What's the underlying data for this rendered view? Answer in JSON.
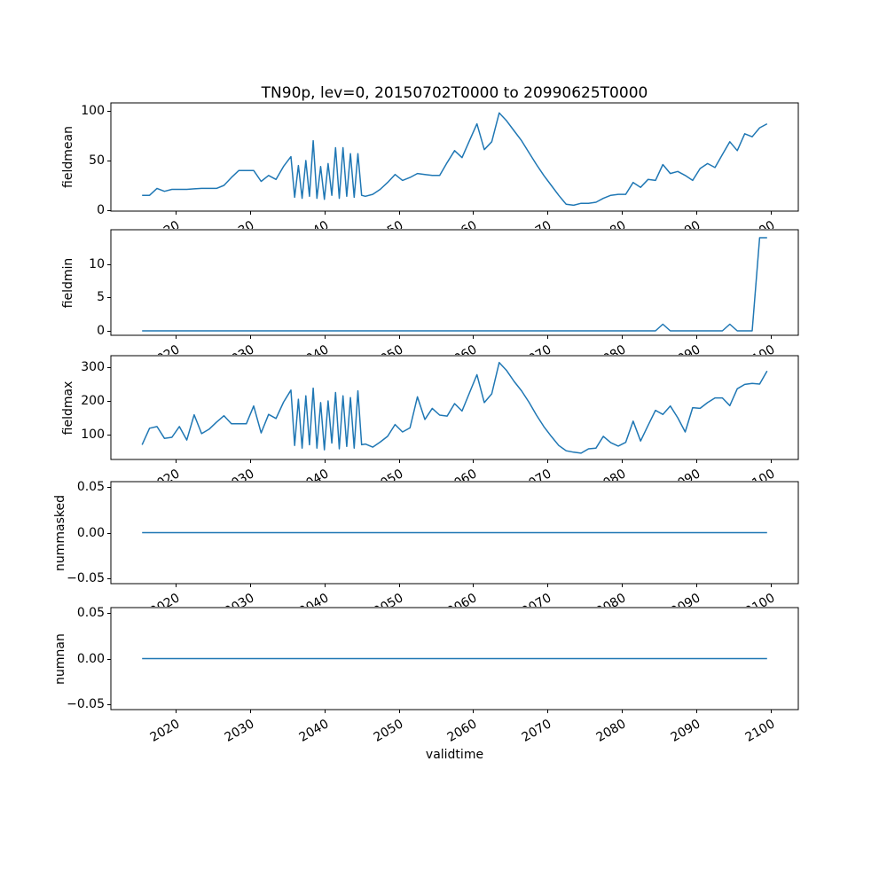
{
  "chart_data": {
    "type": "line",
    "title": "TN90p, lev=0, 20150702T0000 to 20990625T0000",
    "xlabel": "validtime",
    "grid": false,
    "legend": "none",
    "line_color": "#1f77b4",
    "spine_color": "#000000",
    "xlim": [
      2011.3,
      2103.7
    ],
    "xticks": [
      2020,
      2030,
      2040,
      2050,
      2060,
      2070,
      2080,
      2090,
      2100
    ],
    "xtick_labels": [
      "2020",
      "2030",
      "2040",
      "2050",
      "2060",
      "2070",
      "2080",
      "2090",
      "2100"
    ],
    "xtick_rotation_deg": 30,
    "subplots": [
      {
        "ylabel": "fieldmean",
        "ylim": [
          -0.9,
          108.1
        ],
        "yticks": [
          0,
          50,
          100
        ],
        "ytick_labels": [
          "0",
          "50",
          "100"
        ],
        "x": [
          2015.5,
          2016.5,
          2017.5,
          2018.5,
          2019.5,
          2020.5,
          2021.5,
          2022.5,
          2023.5,
          2024.5,
          2025.5,
          2026.5,
          2027.5,
          2028.5,
          2029.5,
          2030.5,
          2031.5,
          2032.5,
          2033.5,
          2034.5,
          2035.5,
          2036,
          2036.5,
          2037,
          2037.5,
          2038,
          2038.5,
          2039,
          2039.5,
          2040,
          2040.5,
          2041,
          2041.5,
          2042,
          2042.5,
          2043,
          2043.5,
          2044,
          2044.5,
          2045,
          2045.5,
          2046.5,
          2047.5,
          2048.5,
          2049.5,
          2050.5,
          2051.5,
          2052.5,
          2053.5,
          2054.5,
          2055.5,
          2056.5,
          2057.5,
          2058.5,
          2059.5,
          2060.5,
          2061.5,
          2062.5,
          2063.5,
          2064.5,
          2065.5,
          2066.5,
          2067.5,
          2068.5,
          2069.5,
          2070.5,
          2071.5,
          2072.5,
          2073.5,
          2074.5,
          2075.5,
          2076.5,
          2077.5,
          2078.5,
          2079.5,
          2080.5,
          2081.5,
          2082.5,
          2083.5,
          2084.5,
          2085.5,
          2086.5,
          2087.5,
          2088.5,
          2089.5,
          2090.5,
          2091.5,
          2092.5,
          2093.5,
          2094.5,
          2095.5,
          2096.5,
          2097.5,
          2098.5,
          2099.5
        ],
        "y": [
          15,
          15,
          22,
          19,
          21,
          21,
          21,
          21.5,
          22,
          22,
          22,
          25,
          33,
          40,
          40,
          40,
          29,
          35,
          31,
          44,
          54,
          13,
          45,
          12,
          50,
          14,
          70,
          12,
          44,
          11,
          47,
          15,
          63,
          12,
          63,
          14,
          57,
          13,
          57,
          15,
          14,
          16,
          21,
          28,
          36,
          30,
          33,
          37,
          36,
          35,
          35,
          48,
          60,
          53,
          70,
          87,
          61,
          69,
          98,
          90,
          80,
          70,
          58,
          46,
          35,
          25,
          15,
          6,
          5,
          7,
          7,
          8,
          12,
          15,
          16,
          16,
          28,
          23,
          31,
          30,
          46,
          37,
          39,
          35,
          30,
          42,
          47,
          43,
          56,
          69,
          60,
          77,
          74,
          83,
          87
        ]
      },
      {
        "ylabel": "fieldmin",
        "ylim": [
          -0.67,
          15.2
        ],
        "yticks": [
          0,
          5,
          10
        ],
        "ytick_labels": [
          "0",
          "5",
          "10"
        ],
        "x": [
          2015.5,
          2016.5,
          2017.5,
          2018.5,
          2019.5,
          2020.5,
          2021.5,
          2022.5,
          2023.5,
          2024.5,
          2025.5,
          2026.5,
          2027.5,
          2028.5,
          2029.5,
          2030.5,
          2031.5,
          2032.5,
          2033.5,
          2034.5,
          2035.5,
          2036.5,
          2037.5,
          2038.5,
          2039.5,
          2040.5,
          2041.5,
          2042.5,
          2043.5,
          2044.5,
          2045.5,
          2046.5,
          2047.5,
          2048.5,
          2049.5,
          2050.5,
          2051.5,
          2052.5,
          2053.5,
          2054.5,
          2055.5,
          2056.5,
          2057.5,
          2058.5,
          2059.5,
          2060.5,
          2061.5,
          2062.5,
          2063.5,
          2064.5,
          2065.5,
          2066.5,
          2067.5,
          2068.5,
          2069.5,
          2070.5,
          2071.5,
          2072.5,
          2073.5,
          2074.5,
          2075.5,
          2076.5,
          2077.5,
          2078.5,
          2079.5,
          2080.5,
          2081.5,
          2082.5,
          2083.5,
          2084.5,
          2085.5,
          2086.5,
          2087.5,
          2088.5,
          2089.5,
          2090.5,
          2091.5,
          2092.5,
          2093.5,
          2094.5,
          2095.5,
          2096.5,
          2097.5,
          2098.5,
          2099.5
        ],
        "y": [
          0,
          0,
          0,
          0,
          0,
          0,
          0,
          0,
          0,
          0,
          0,
          0,
          0,
          0,
          0,
          0,
          0,
          0,
          0,
          0,
          0,
          0,
          0,
          0,
          0,
          0,
          0,
          0,
          0,
          0,
          0,
          0,
          0,
          0,
          0,
          0,
          0,
          0,
          0,
          0,
          0,
          0,
          0,
          0,
          0,
          0,
          0,
          0,
          0,
          0,
          0,
          0,
          0,
          0,
          0,
          0,
          0,
          0,
          0,
          0,
          0,
          0,
          0,
          0,
          0,
          0,
          0,
          0,
          0,
          0,
          1,
          0,
          0,
          0,
          0,
          0,
          0,
          0,
          0,
          1,
          0,
          0,
          0,
          14,
          14
        ]
      },
      {
        "ylabel": "fieldmax",
        "ylim": [
          26.3,
          334.2
        ],
        "yticks": [
          100,
          200,
          300
        ],
        "ytick_labels": [
          "100",
          "200",
          "300"
        ],
        "x": [
          2015.5,
          2016.5,
          2017.5,
          2018.5,
          2019.5,
          2020.5,
          2021.5,
          2022.5,
          2023.5,
          2024.5,
          2025.5,
          2026.5,
          2027.5,
          2028.5,
          2029.5,
          2030.5,
          2031.5,
          2032.5,
          2033.5,
          2034.5,
          2035.5,
          2036,
          2036.5,
          2037,
          2037.5,
          2038,
          2038.5,
          2039,
          2039.5,
          2040,
          2040.5,
          2041,
          2041.5,
          2042,
          2042.5,
          2043,
          2043.5,
          2044,
          2044.5,
          2045,
          2045.5,
          2046.5,
          2047.5,
          2048.5,
          2049.5,
          2050.5,
          2051.5,
          2052.5,
          2053.5,
          2054.5,
          2055.5,
          2056.5,
          2057.5,
          2058.5,
          2059.5,
          2060.5,
          2061.5,
          2062.5,
          2063.5,
          2064.5,
          2065.5,
          2066.5,
          2067.5,
          2068.5,
          2069.5,
          2070.5,
          2071.5,
          2072.5,
          2073.5,
          2074.5,
          2075.5,
          2076.5,
          2077.5,
          2078.5,
          2079.5,
          2080.5,
          2081.5,
          2082.5,
          2083.5,
          2084.5,
          2085.5,
          2086.5,
          2087.5,
          2088.5,
          2089.5,
          2090.5,
          2091.5,
          2092.5,
          2093.5,
          2094.5,
          2095.5,
          2096.5,
          2097.5,
          2098.5,
          2099.5
        ],
        "y": [
          70,
          119,
          124,
          89,
          92,
          124,
          84,
          159,
          103,
          116,
          137,
          156,
          132,
          132,
          132,
          185,
          105,
          160,
          148,
          196,
          232,
          68,
          205,
          60,
          215,
          70,
          238,
          60,
          195,
          55,
          200,
          75,
          225,
          58,
          215,
          65,
          210,
          60,
          230,
          70,
          72,
          63,
          78,
          95,
          130,
          108,
          120,
          212,
          145,
          178,
          158,
          155,
          192,
          170,
          224,
          278,
          195,
          221,
          314,
          290,
          258,
          230,
          196,
          158,
          124,
          95,
          68,
          52,
          48,
          45,
          58,
          60,
          95,
          76,
          66,
          77,
          140,
          81,
          127,
          172,
          160,
          185,
          150,
          108,
          180,
          178,
          195,
          209,
          209,
          186,
          236,
          249,
          252,
          250,
          289
        ]
      },
      {
        "ylabel": "nummasked",
        "ylim": [
          -0.0555,
          0.0555
        ],
        "yticks": [
          -0.05,
          0,
          0.05
        ],
        "ytick_labels": [
          "−0.05",
          "0.00",
          "0.05"
        ],
        "x": [
          2015.5,
          2016.5,
          2017.5,
          2018.5,
          2019.5,
          2020.5,
          2021.5,
          2022.5,
          2023.5,
          2024.5,
          2025.5,
          2026.5,
          2027.5,
          2028.5,
          2029.5,
          2030.5,
          2031.5,
          2032.5,
          2033.5,
          2034.5,
          2035.5,
          2036.5,
          2037.5,
          2038.5,
          2039.5,
          2040.5,
          2041.5,
          2042.5,
          2043.5,
          2044.5,
          2045.5,
          2046.5,
          2047.5,
          2048.5,
          2049.5,
          2050.5,
          2051.5,
          2052.5,
          2053.5,
          2054.5,
          2055.5,
          2056.5,
          2057.5,
          2058.5,
          2059.5,
          2060.5,
          2061.5,
          2062.5,
          2063.5,
          2064.5,
          2065.5,
          2066.5,
          2067.5,
          2068.5,
          2069.5,
          2070.5,
          2071.5,
          2072.5,
          2073.5,
          2074.5,
          2075.5,
          2076.5,
          2077.5,
          2078.5,
          2079.5,
          2080.5,
          2081.5,
          2082.5,
          2083.5,
          2084.5,
          2085.5,
          2086.5,
          2087.5,
          2088.5,
          2089.5,
          2090.5,
          2091.5,
          2092.5,
          2093.5,
          2094.5,
          2095.5,
          2096.5,
          2097.5,
          2098.5,
          2099.5
        ],
        "y": [
          0,
          0,
          0,
          0,
          0,
          0,
          0,
          0,
          0,
          0,
          0,
          0,
          0,
          0,
          0,
          0,
          0,
          0,
          0,
          0,
          0,
          0,
          0,
          0,
          0,
          0,
          0,
          0,
          0,
          0,
          0,
          0,
          0,
          0,
          0,
          0,
          0,
          0,
          0,
          0,
          0,
          0,
          0,
          0,
          0,
          0,
          0,
          0,
          0,
          0,
          0,
          0,
          0,
          0,
          0,
          0,
          0,
          0,
          0,
          0,
          0,
          0,
          0,
          0,
          0,
          0,
          0,
          0,
          0,
          0,
          0,
          0,
          0,
          0,
          0,
          0,
          0,
          0,
          0,
          0,
          0,
          0,
          0,
          0,
          0
        ]
      },
      {
        "ylabel": "numnan",
        "ylim": [
          -0.0555,
          0.0555
        ],
        "yticks": [
          -0.05,
          0,
          0.05
        ],
        "ytick_labels": [
          "−0.05",
          "0.00",
          "0.05"
        ],
        "x": [
          2015.5,
          2016.5,
          2017.5,
          2018.5,
          2019.5,
          2020.5,
          2021.5,
          2022.5,
          2023.5,
          2024.5,
          2025.5,
          2026.5,
          2027.5,
          2028.5,
          2029.5,
          2030.5,
          2031.5,
          2032.5,
          2033.5,
          2034.5,
          2035.5,
          2036.5,
          2037.5,
          2038.5,
          2039.5,
          2040.5,
          2041.5,
          2042.5,
          2043.5,
          2044.5,
          2045.5,
          2046.5,
          2047.5,
          2048.5,
          2049.5,
          2050.5,
          2051.5,
          2052.5,
          2053.5,
          2054.5,
          2055.5,
          2056.5,
          2057.5,
          2058.5,
          2059.5,
          2060.5,
          2061.5,
          2062.5,
          2063.5,
          2064.5,
          2065.5,
          2066.5,
          2067.5,
          2068.5,
          2069.5,
          2070.5,
          2071.5,
          2072.5,
          2073.5,
          2074.5,
          2075.5,
          2076.5,
          2077.5,
          2078.5,
          2079.5,
          2080.5,
          2081.5,
          2082.5,
          2083.5,
          2084.5,
          2085.5,
          2086.5,
          2087.5,
          2088.5,
          2089.5,
          2090.5,
          2091.5,
          2092.5,
          2093.5,
          2094.5,
          2095.5,
          2096.5,
          2097.5,
          2098.5,
          2099.5
        ],
        "y": [
          0,
          0,
          0,
          0,
          0,
          0,
          0,
          0,
          0,
          0,
          0,
          0,
          0,
          0,
          0,
          0,
          0,
          0,
          0,
          0,
          0,
          0,
          0,
          0,
          0,
          0,
          0,
          0,
          0,
          0,
          0,
          0,
          0,
          0,
          0,
          0,
          0,
          0,
          0,
          0,
          0,
          0,
          0,
          0,
          0,
          0,
          0,
          0,
          0,
          0,
          0,
          0,
          0,
          0,
          0,
          0,
          0,
          0,
          0,
          0,
          0,
          0,
          0,
          0,
          0,
          0,
          0,
          0,
          0,
          0,
          0,
          0,
          0,
          0,
          0,
          0,
          0,
          0,
          0,
          0,
          0,
          0,
          0,
          0,
          0
        ]
      }
    ]
  }
}
